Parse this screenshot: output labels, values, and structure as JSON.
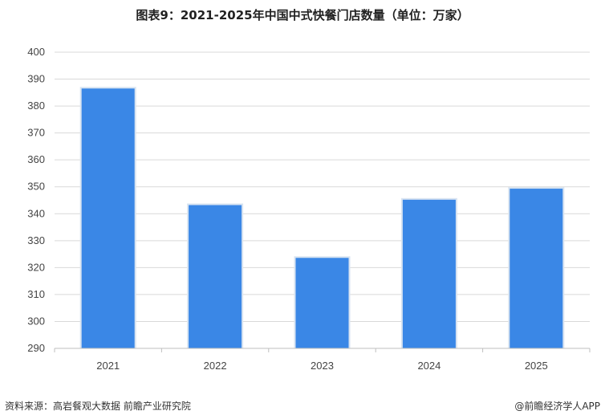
{
  "header": {
    "title": "图表9：2021-2025年中国中式快餐门店数量（单位：万家）"
  },
  "footer": {
    "source": "资料来源：高岩餐观大数据 前瞻产业研究院",
    "brand": "@前瞻经济学人APP"
  },
  "colors": {
    "bar": "#3a87e6",
    "bar_border": "#d7e3f1",
    "grid": "#d9d9d9",
    "axis": "#bfbfbf"
  },
  "chart_data": {
    "type": "bar",
    "title": "图表9：2021-2025年中国中式快餐门店数量（单位：万家）",
    "categories": [
      "2021",
      "2022",
      "2023",
      "2024",
      "2025"
    ],
    "values": [
      386.5,
      343.2,
      323.6,
      345.2,
      349.3
    ],
    "ylim": [
      290,
      400
    ],
    "yticks": [
      290,
      300,
      310,
      320,
      330,
      340,
      350,
      360,
      370,
      380,
      390,
      400
    ],
    "grid": true,
    "legend": "none"
  }
}
